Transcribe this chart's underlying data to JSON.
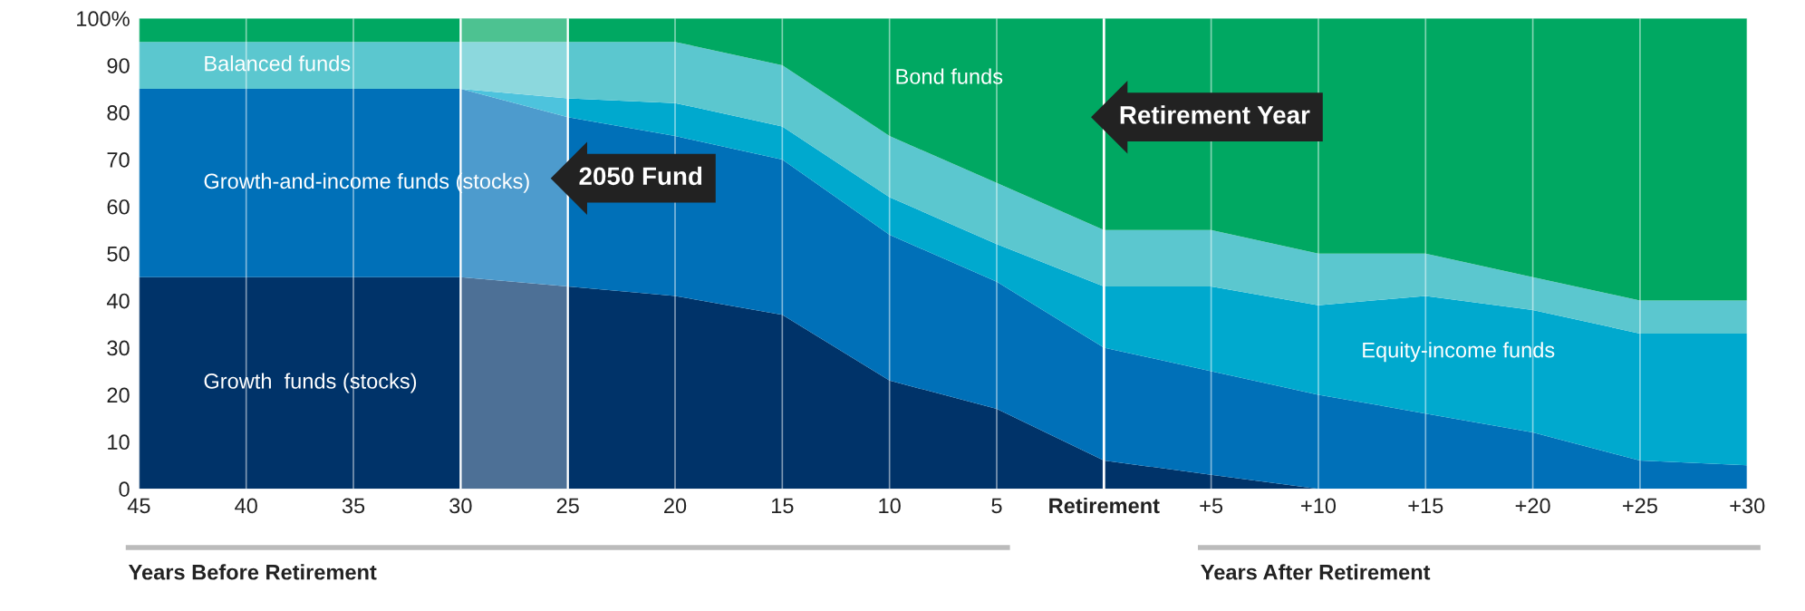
{
  "chart_data": {
    "type": "area",
    "stacked": true,
    "x": [
      -45,
      -40,
      -35,
      -30,
      -25,
      -20,
      -15,
      -10,
      -5,
      0,
      5,
      10,
      15,
      20,
      25,
      30
    ],
    "series": [
      {
        "name": "Growth  funds (stocks)",
        "color": "#003369",
        "values": [
          45,
          45,
          45,
          45,
          43,
          41,
          37,
          23,
          17,
          6,
          3,
          0,
          0,
          0,
          0,
          0
        ]
      },
      {
        "name": "Growth-and-income funds (stocks)",
        "color": "#0070b8",
        "values": [
          40,
          40,
          40,
          40,
          36,
          34,
          33,
          31,
          27,
          24,
          22,
          20,
          16,
          12,
          6,
          5
        ]
      },
      {
        "name": "Equity-income funds",
        "color": "#00a9ce",
        "values": [
          0,
          0,
          0,
          0,
          4,
          7,
          7,
          8,
          8,
          13,
          18,
          19,
          25,
          26,
          27,
          28
        ]
      },
      {
        "name": "Balanced funds",
        "color": "#5bc7cf",
        "values": [
          10,
          10,
          10,
          10,
          12,
          13,
          13,
          13,
          13,
          12,
          12,
          11,
          9,
          7,
          7,
          7
        ]
      },
      {
        "name": "Bond funds",
        "color": "#00a862",
        "values": [
          5,
          5,
          5,
          5,
          5,
          5,
          10,
          25,
          35,
          45,
          45,
          50,
          50,
          55,
          60,
          60
        ]
      }
    ],
    "xlim": [
      -45,
      30
    ],
    "ylim": [
      0,
      100
    ],
    "xticks": [
      {
        "value": -45,
        "label": "45"
      },
      {
        "value": -40,
        "label": "40"
      },
      {
        "value": -35,
        "label": "35"
      },
      {
        "value": -30,
        "label": "30"
      },
      {
        "value": -25,
        "label": "25"
      },
      {
        "value": -20,
        "label": "20"
      },
      {
        "value": -15,
        "label": "15"
      },
      {
        "value": -10,
        "label": "10"
      },
      {
        "value": -5,
        "label": "5"
      },
      {
        "value": 0,
        "label": "Retirement"
      },
      {
        "value": 5,
        "label": "+5"
      },
      {
        "value": 10,
        "label": "+10"
      },
      {
        "value": 15,
        "label": "+15"
      },
      {
        "value": 20,
        "label": "+20"
      },
      {
        "value": 25,
        "label": "+25"
      },
      {
        "value": 30,
        "label": "+30"
      }
    ],
    "yticks": [
      0,
      10,
      20,
      30,
      40,
      50,
      60,
      70,
      80,
      90,
      {
        "value": 100,
        "label": "100%"
      }
    ],
    "grid": "x",
    "legend": false,
    "bands": [
      {
        "axis": "x",
        "from": -30,
        "to": -25,
        "label": "2050 Fund",
        "color": "#ffffff"
      }
    ],
    "ref_lines": [
      {
        "axis": "x",
        "value": 0,
        "label": "Retirement Year",
        "color": "#ffffff"
      }
    ],
    "annotations": [
      "Years Before Retirement",
      "Years After Retirement"
    ]
  }
}
